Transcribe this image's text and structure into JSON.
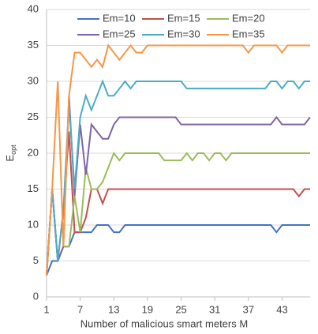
{
  "chart_data": {
    "type": "line",
    "xlabel": "Number of malicious smart meters M",
    "ylabel": {
      "main": "E",
      "sub": "opt"
    },
    "x": [
      1,
      2,
      3,
      4,
      5,
      6,
      7,
      8,
      9,
      10,
      11,
      12,
      13,
      14,
      15,
      16,
      17,
      18,
      19,
      20,
      21,
      22,
      23,
      24,
      25,
      26,
      27,
      28,
      29,
      30,
      31,
      32,
      33,
      34,
      35,
      36,
      37,
      38,
      39,
      40,
      41,
      42,
      43,
      44,
      45,
      46,
      47,
      48
    ],
    "xlim": [
      1,
      48
    ],
    "xticks": [
      1,
      7,
      13,
      19,
      25,
      31,
      37,
      43
    ],
    "ylim": [
      0,
      40
    ],
    "yticks": [
      0,
      5,
      10,
      15,
      20,
      25,
      30,
      35,
      40
    ],
    "grid": true,
    "series": [
      {
        "name": "Em=10",
        "color": "#4472c4",
        "values": [
          3,
          5,
          5,
          7,
          7,
          9,
          9,
          9,
          9,
          10,
          10,
          10,
          9,
          9,
          10,
          10,
          10,
          10,
          10,
          10,
          10,
          10,
          10,
          10,
          10,
          10,
          10,
          10,
          10,
          10,
          10,
          10,
          10,
          10,
          10,
          10,
          10,
          10,
          10,
          10,
          10,
          9,
          10,
          10,
          10,
          10,
          10,
          10
        ]
      },
      {
        "name": "Em=15",
        "color": "#c0504d",
        "values": [
          3,
          15,
          5,
          12,
          23,
          9,
          9,
          11,
          15,
          15,
          13,
          15,
          15,
          15,
          15,
          15,
          15,
          15,
          15,
          15,
          15,
          15,
          15,
          15,
          15,
          15,
          15,
          15,
          15,
          15,
          15,
          15,
          15,
          15,
          15,
          15,
          15,
          15,
          15,
          15,
          15,
          15,
          15,
          15,
          15,
          14,
          15,
          15
        ]
      },
      {
        "name": "Em=20",
        "color": "#9bbb59",
        "values": [
          3,
          15,
          5,
          7,
          7,
          14,
          9,
          18,
          15,
          15,
          16,
          18,
          20,
          19,
          20,
          20,
          20,
          20,
          20,
          20,
          20,
          19,
          19,
          19,
          19,
          20,
          19,
          20,
          20,
          19,
          20,
          20,
          19,
          20,
          20,
          20,
          20,
          20,
          20,
          20,
          20,
          20,
          20,
          20,
          20,
          20,
          20,
          20
        ]
      },
      {
        "name": "Em=25",
        "color": "#8064a2",
        "values": [
          3,
          15,
          5,
          7,
          28,
          14,
          24,
          17,
          24,
          23,
          22,
          22,
          24,
          25,
          25,
          25,
          25,
          25,
          25,
          25,
          25,
          25,
          25,
          25,
          24,
          24,
          24,
          24,
          24,
          24,
          24,
          24,
          24,
          24,
          24,
          24,
          24,
          24,
          24,
          24,
          24,
          25,
          24,
          24,
          24,
          24,
          24,
          25
        ]
      },
      {
        "name": "Em=30",
        "color": "#4bacc6",
        "values": [
          3,
          15,
          5,
          12,
          27,
          15,
          25,
          28,
          26,
          28,
          30,
          28,
          28,
          29,
          30,
          29,
          30,
          30,
          30,
          30,
          30,
          30,
          30,
          30,
          30,
          29,
          29,
          29,
          29,
          29,
          29,
          29,
          29,
          29,
          29,
          29,
          29,
          29,
          29,
          29,
          30,
          30,
          29,
          30,
          30,
          29,
          30,
          30
        ]
      },
      {
        "name": "Em=35",
        "color": "#f79646",
        "values": [
          3,
          15,
          30,
          7,
          28,
          34,
          34,
          33,
          32,
          33,
          32,
          35,
          34,
          33,
          34,
          35,
          34,
          34,
          35,
          35,
          35,
          35,
          35,
          35,
          35,
          35,
          35,
          35,
          35,
          35,
          35,
          35,
          35,
          35,
          35,
          35,
          34,
          35,
          35,
          35,
          35,
          35,
          34,
          35,
          35,
          35,
          35,
          35
        ]
      }
    ]
  }
}
